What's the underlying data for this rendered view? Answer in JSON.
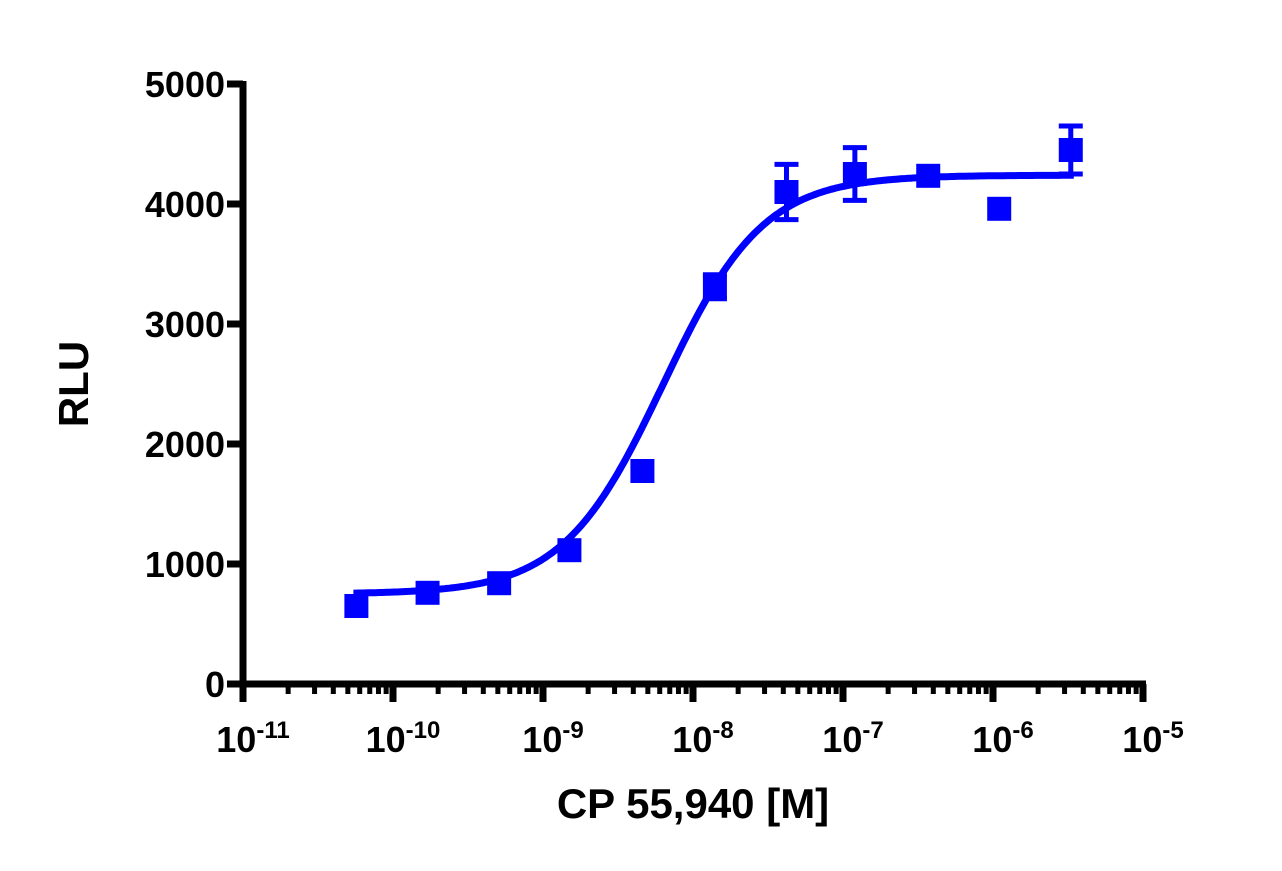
{
  "chart_data": {
    "type": "scatter",
    "title": "",
    "xlabel": "CP 55,940 [M]",
    "ylabel": "RLU",
    "xscale": "log",
    "xlim": [
      1e-11,
      1e-05
    ],
    "ylim": [
      0,
      5000
    ],
    "x_ticks": [
      {
        "base": "10",
        "exp": "-11"
      },
      {
        "base": "10",
        "exp": "-10"
      },
      {
        "base": "10",
        "exp": "-9"
      },
      {
        "base": "10",
        "exp": "-8"
      },
      {
        "base": "10",
        "exp": "-7"
      },
      {
        "base": "10",
        "exp": "-6"
      },
      {
        "base": "10",
        "exp": "-5"
      }
    ],
    "y_ticks": [
      "0",
      "1000",
      "2000",
      "3000",
      "4000",
      "5000"
    ],
    "grid": false,
    "legend": null,
    "color": "#0000ff",
    "series": [
      {
        "name": "CP 55,940",
        "marker": "square",
        "x": [
          5.7e-11,
          1.7e-10,
          5.1e-10,
          1.5e-09,
          4.6e-09,
          1.4e-08,
          4.2e-08,
          1.2e-07,
          3.7e-07,
          1.1e-06,
          3.3e-06
        ],
        "y": [
          650,
          760,
          840,
          1115,
          1775,
          3310,
          4100,
          4250,
          4235,
          3960,
          4450
        ],
        "error": [
          0,
          0,
          0,
          0,
          0,
          100,
          230,
          220,
          0,
          0,
          200
        ]
      }
    ],
    "fit": {
      "type": "sigmoidal dose-response",
      "bottom": 750,
      "top": 4240,
      "logEC50": -8.2,
      "hill": 1.3
    }
  }
}
